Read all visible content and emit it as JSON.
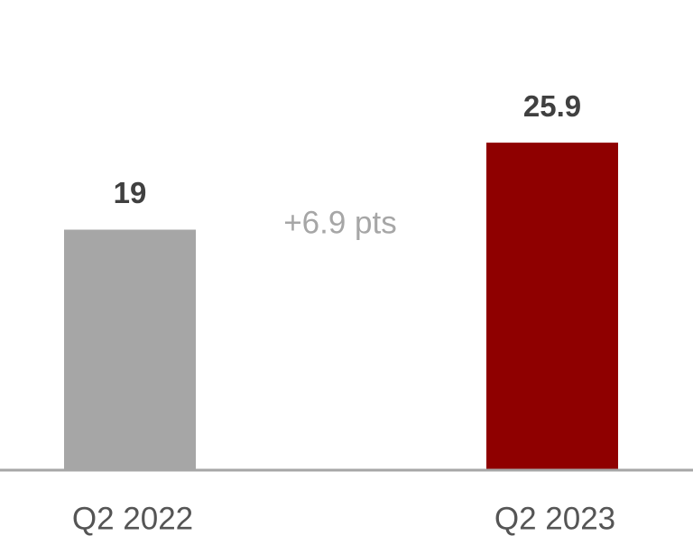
{
  "chart_data": {
    "type": "bar",
    "categories": [
      "Q2 2022",
      "Q2 2023"
    ],
    "values": [
      19,
      25.9
    ],
    "colors": [
      "#a6a6a6",
      "#8f0000"
    ],
    "annotation": "+6.9 pts",
    "ylim": [
      0,
      37
    ]
  }
}
